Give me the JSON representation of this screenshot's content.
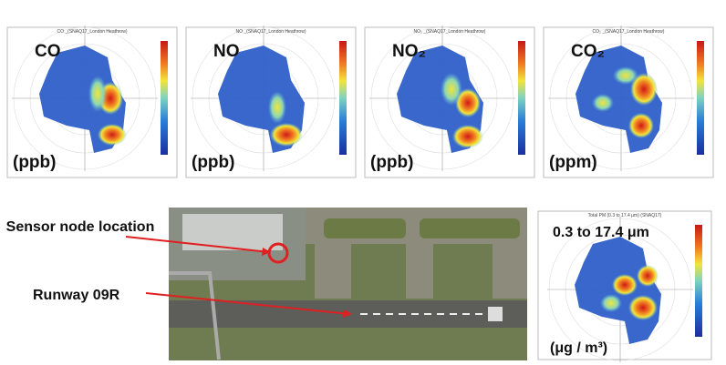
{
  "panels": [
    {
      "title": "CO _(SNAQ17_London Heathrow)",
      "label": "CO",
      "unit": "(ppb)"
    },
    {
      "title": "NO _(SNAQ17_London Heathrow)",
      "label": "NO",
      "unit": "(ppb)"
    },
    {
      "title": "NO₂ _(SNAQ17_London Heathrow)",
      "label": "NO₂",
      "unit": "(ppb)"
    },
    {
      "title": "CO₂ _(SNAQ17_London Heathrow)",
      "label": "CO₂",
      "unit": "(ppm)"
    }
  ],
  "map": {
    "sensor_label": "Sensor node location",
    "runway_label": "Runway 09R"
  },
  "pm_panel": {
    "title": "Total PM (0.3 to 17.4 μm) (SNAQ17)",
    "range": "0.3 to 17.4  μm",
    "unit": "(μg / m³)"
  }
}
